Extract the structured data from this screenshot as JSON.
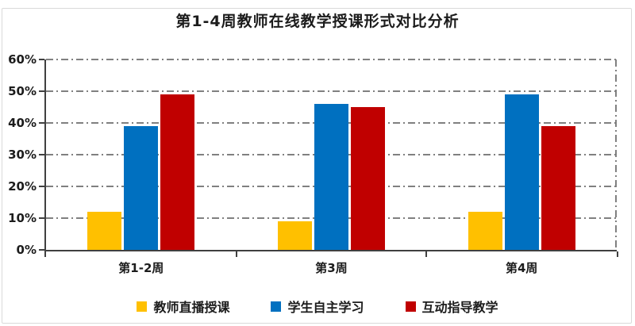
{
  "title": "第1-4周教师在线教学授课形式对比分析",
  "chart_data": {
    "type": "bar",
    "title": "第1-4周教师在线教学授课形式对比分析",
    "categories": [
      "第1-2周",
      "第3周",
      "第4周"
    ],
    "series": [
      {
        "name": "教师直播授课",
        "color": "#FFC000",
        "values": [
          12,
          9,
          12
        ]
      },
      {
        "name": "学生自主学习",
        "color": "#0070C0",
        "values": [
          39,
          46,
          49
        ]
      },
      {
        "name": "互动指导教学",
        "color": "#C00000",
        "values": [
          49,
          45,
          39
        ]
      }
    ],
    "xlabel": "",
    "ylabel": "",
    "ylim": [
      0,
      60
    ],
    "yticks": [
      0,
      10,
      20,
      30,
      40,
      50,
      60
    ],
    "ytick_suffix": "%",
    "grid": "horizontal dash-dot",
    "legend_position": "bottom",
    "colors": {
      "axis": "#404040",
      "grid": "#808080",
      "frame": "#d9d9d9",
      "text": "#1c1c1c",
      "background": "#ffffff"
    }
  }
}
